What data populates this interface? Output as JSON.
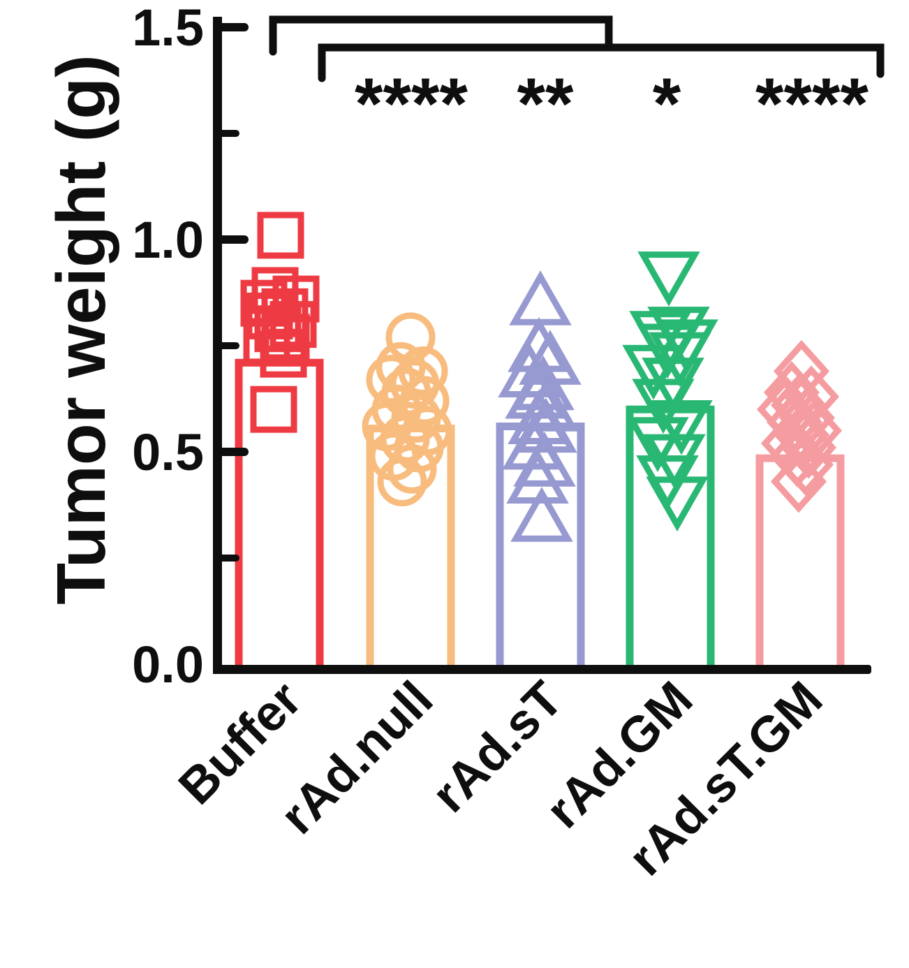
{
  "chart_data": {
    "type": "bar",
    "title": "",
    "xlabel": "",
    "ylabel": "Tumor weight (g)",
    "ylim": [
      0,
      1.5
    ],
    "ytick_values": [
      0.0,
      0.5,
      1.0,
      1.5
    ],
    "ytick_labels": [
      "0.0",
      "0.5",
      "1.0",
      "1.5"
    ],
    "yminor_values": [
      0.25,
      0.75,
      1.25
    ],
    "grid": false,
    "legend_position": "none",
    "categories": [
      "Buffer",
      "rAd.null",
      "rAd.sT",
      "rAd.GM",
      "rAd.sT.GM"
    ],
    "bar_fill": "#ffffff",
    "axis_color": "#0e0e0e",
    "series": [
      {
        "name": "Buffer",
        "marker": "square",
        "color": "#EE3B43",
        "mean": 0.71,
        "points": [
          [
            1.01,
            2
          ],
          [
            0.88,
            -6
          ],
          [
            0.86,
            24
          ],
          [
            0.85,
            -22
          ],
          [
            0.83,
            8
          ],
          [
            0.82,
            -14
          ],
          [
            0.8,
            20
          ],
          [
            0.79,
            -2
          ],
          [
            0.77,
            10
          ],
          [
            0.76,
            -18
          ],
          [
            0.73,
            6
          ],
          [
            0.6,
            -8
          ]
        ]
      },
      {
        "name": "rAd.null",
        "marker": "circle",
        "color": "#F8BC7E",
        "mean": 0.555,
        "points": [
          [
            0.77,
            0
          ],
          [
            0.7,
            -14
          ],
          [
            0.69,
            18
          ],
          [
            0.67,
            -28
          ],
          [
            0.66,
            6
          ],
          [
            0.64,
            -6
          ],
          [
            0.62,
            20
          ],
          [
            0.6,
            -20
          ],
          [
            0.58,
            8
          ],
          [
            0.56,
            -34
          ],
          [
            0.55,
            24
          ],
          [
            0.53,
            -8
          ],
          [
            0.51,
            12
          ],
          [
            0.49,
            -24
          ],
          [
            0.46,
            2
          ],
          [
            0.43,
            -12
          ]
        ]
      },
      {
        "name": "rAd.sT",
        "marker": "triangle-up",
        "color": "#9799D1",
        "mean": 0.56,
        "points": [
          [
            0.85,
            0
          ],
          [
            0.74,
            -2
          ],
          [
            0.71,
            14
          ],
          [
            0.68,
            -16
          ],
          [
            0.65,
            4
          ],
          [
            0.63,
            -6
          ],
          [
            0.6,
            10
          ],
          [
            0.57,
            -2
          ],
          [
            0.55,
            8
          ],
          [
            0.51,
            -10
          ],
          [
            0.47,
            6
          ],
          [
            0.43,
            -4
          ],
          [
            0.34,
            2
          ]
        ]
      },
      {
        "name": "rAd.GM",
        "marker": "triangle-down",
        "color": "#29B873",
        "mean": 0.6,
        "points": [
          [
            0.92,
            -2
          ],
          [
            0.79,
            12
          ],
          [
            0.78,
            -14
          ],
          [
            0.76,
            24
          ],
          [
            0.75,
            -4
          ],
          [
            0.73,
            14
          ],
          [
            0.7,
            -24
          ],
          [
            0.67,
            4
          ],
          [
            0.62,
            -10
          ],
          [
            0.57,
            16
          ],
          [
            0.53,
            -18
          ],
          [
            0.49,
            6
          ],
          [
            0.44,
            -4
          ],
          [
            0.39,
            10
          ]
        ]
      },
      {
        "name": "rAd.sT.GM",
        "marker": "diamond",
        "color": "#F59CA0",
        "mean": 0.485,
        "points": [
          [
            0.69,
            2
          ],
          [
            0.64,
            -12
          ],
          [
            0.63,
            16
          ],
          [
            0.61,
            -2
          ],
          [
            0.6,
            -22
          ],
          [
            0.58,
            10
          ],
          [
            0.57,
            -8
          ],
          [
            0.55,
            20
          ],
          [
            0.54,
            2
          ],
          [
            0.52,
            -16
          ],
          [
            0.51,
            12
          ],
          [
            0.49,
            -4
          ],
          [
            0.47,
            8
          ],
          [
            0.43,
            -2
          ]
        ]
      }
    ],
    "significance": {
      "comparison": "Buffer vs each treatment group (nested brackets)",
      "marks": [
        {
          "category": "rAd.null",
          "label": "****"
        },
        {
          "category": "rAd.sT",
          "label": "**"
        },
        {
          "category": "rAd.GM",
          "label": "*"
        },
        {
          "category": "rAd.sT.GM",
          "label": "****"
        }
      ]
    }
  }
}
